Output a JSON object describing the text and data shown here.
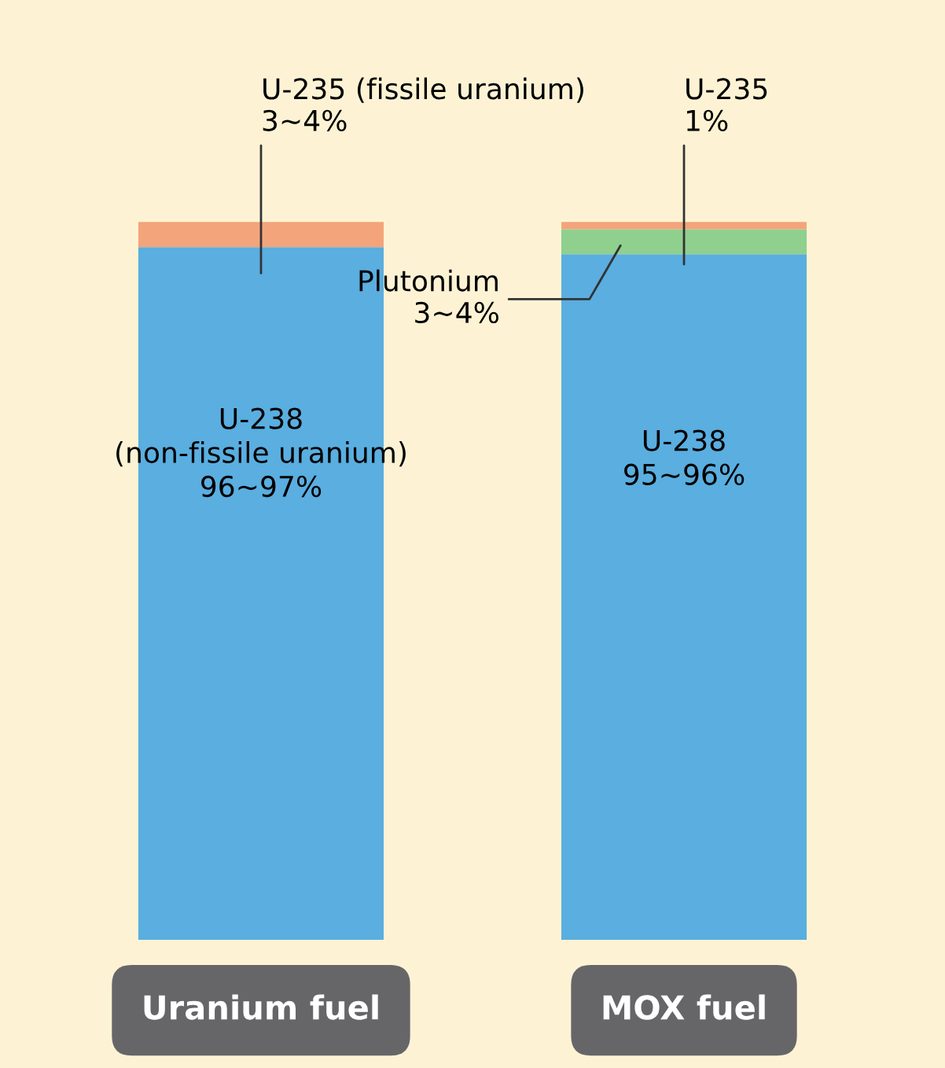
{
  "chart_data": {
    "type": "bar",
    "stacked": true,
    "categories": [
      "Uranium fuel",
      "MOX fuel"
    ],
    "series": [
      {
        "color": "#5aaee0",
        "values": [
          96.5,
          95.5
        ],
        "value_labels": [
          "U-238\n(non-fissile uranium)\n96∼97%",
          "U-238\n95∼96%"
        ]
      },
      {
        "color": "#8fd08f",
        "values": [
          null,
          3.5
        ],
        "value_labels": [
          null,
          "Plutonium\n3∼4%"
        ]
      },
      {
        "color": "#f4a47a",
        "values": [
          3.5,
          1
        ],
        "value_labels": [
          "U-235 (fissile uranium)\n3∼4%",
          "U-235\n1%"
        ]
      }
    ]
  }
}
